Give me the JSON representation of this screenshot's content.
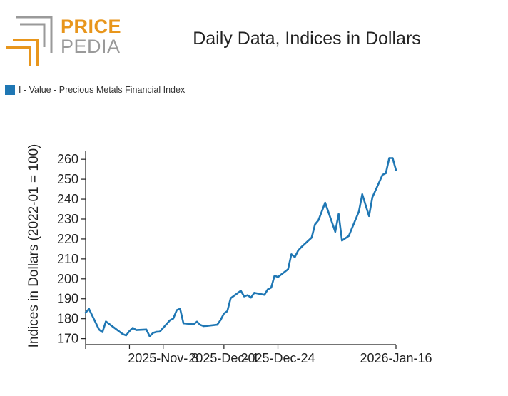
{
  "logo": {
    "top_word": "PRICE",
    "bottom_word": "PEDIA",
    "accent": "#e8961c",
    "gray": "#9a9a9a"
  },
  "legend": {
    "label": "I - Value - Precious Metals Financial Index",
    "color": "#1f77b4"
  },
  "chart_data": {
    "type": "line",
    "title": "Daily Data, Indices in Dollars",
    "xlabel": "",
    "ylabel": "Indices in Dollars (2022-01 = 100)",
    "ylim": [
      167,
      264
    ],
    "yticks": [
      170,
      180,
      190,
      200,
      210,
      220,
      230,
      240,
      250,
      260
    ],
    "xlim": [
      "2025-10-16",
      "2026-01-16"
    ],
    "xticks": [
      {
        "date": "2025-10-29",
        "label": ""
      },
      {
        "date": "2025-11-08",
        "label": "2025-Nov- 8"
      },
      {
        "date": "2025-11-26",
        "label": "2025-Dec- 1"
      },
      {
        "date": "2025-12-12",
        "label": "2025-Dec-24"
      },
      {
        "date": "2026-01-16",
        "label": "2026-Jan-16"
      }
    ],
    "extra_tick_label": {
      "date": "2025-12-02",
      "label": "2025-Dec-24"
    },
    "grid": false,
    "legend_position": "top-left",
    "series": [
      {
        "name": "I - Value - Precious Metals Financial Index",
        "color": "#1f77b4",
        "x": [
          "2025-10-16",
          "2025-10-17",
          "2025-10-20",
          "2025-10-21",
          "2025-10-22",
          "2025-10-27",
          "2025-10-28",
          "2025-10-29",
          "2025-10-30",
          "2025-10-31",
          "2025-11-03",
          "2025-11-04",
          "2025-11-05",
          "2025-11-06",
          "2025-11-07",
          "2025-11-10",
          "2025-11-11",
          "2025-11-12",
          "2025-11-13",
          "2025-11-14",
          "2025-11-17",
          "2025-11-18",
          "2025-11-19",
          "2025-11-20",
          "2025-11-21",
          "2025-11-24",
          "2025-11-25",
          "2025-11-26",
          "2025-11-27",
          "2025-11-28",
          "2025-12-01",
          "2025-12-02",
          "2025-12-03",
          "2025-12-04",
          "2025-12-05",
          "2025-12-08",
          "2025-12-09",
          "2025-12-10",
          "2025-12-11",
          "2025-12-12",
          "2025-12-15",
          "2025-12-16",
          "2025-12-17",
          "2025-12-18",
          "2025-12-19",
          "2025-12-22",
          "2025-12-23",
          "2025-12-24",
          "2025-12-26",
          "2025-12-29",
          "2025-12-30",
          "2025-12-31",
          "2026-01-02",
          "2026-01-05",
          "2026-01-06",
          "2026-01-07",
          "2026-01-08",
          "2026-01-09",
          "2026-01-12",
          "2026-01-13",
          "2026-01-14",
          "2026-01-15",
          "2026-01-16"
        ],
        "values": [
          183.0,
          184.9,
          174.5,
          173.3,
          178.6,
          172.3,
          171.6,
          173.8,
          175.4,
          174.3,
          174.6,
          171.2,
          172.9,
          173.4,
          173.5,
          179.2,
          180.1,
          184.3,
          185.0,
          177.7,
          177.2,
          178.5,
          176.9,
          176.3,
          176.4,
          177.0,
          179.3,
          182.6,
          183.8,
          190.3,
          194.0,
          191.2,
          191.8,
          190.6,
          193.0,
          192.0,
          194.7,
          195.6,
          201.6,
          200.9,
          204.8,
          212.3,
          210.9,
          214.2,
          216.0,
          220.7,
          227.3,
          229.4,
          238.2,
          223.6,
          232.5,
          219.2,
          221.5,
          233.8,
          242.4,
          237.0,
          231.5,
          240.9,
          252.2,
          253.0,
          260.6,
          260.6,
          254.5
        ]
      }
    ]
  }
}
